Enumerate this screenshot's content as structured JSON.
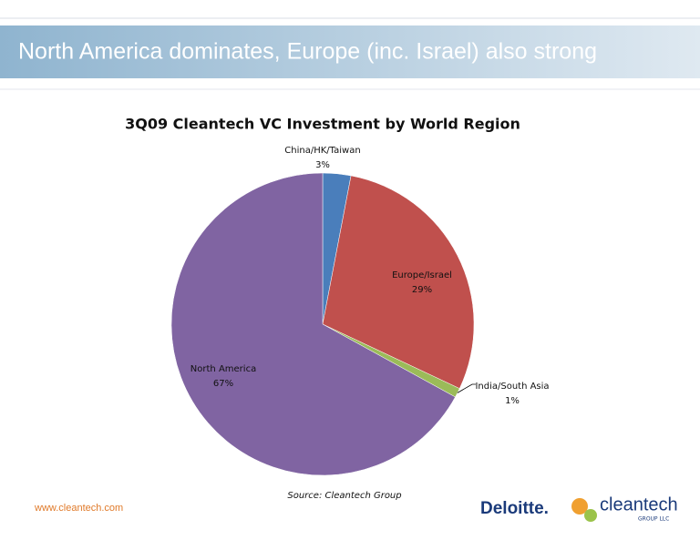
{
  "slide": {
    "title": "North America dominates, Europe (inc. Israel) also strong",
    "footer_url": "www.cleantech.com",
    "logo_deloitte": "Deloitte.",
    "logo_cleantech": "cleantech",
    "logo_cleantech_sub": "GROUP LLC"
  },
  "chart_data": {
    "type": "pie",
    "title": "3Q09 Cleantech VC Investment by World Region",
    "source": "Source: Cleantech Group",
    "categories": [
      "China/HK/Taiwan",
      "Europe/Israel",
      "India/South Asia",
      "North America"
    ],
    "values": [
      3,
      29,
      1,
      67
    ],
    "value_labels": [
      "3%",
      "29%",
      "1%",
      "67%"
    ],
    "colors": [
      "#4a7ebb",
      "#c0504d",
      "#9bbb59",
      "#8064a2"
    ]
  }
}
